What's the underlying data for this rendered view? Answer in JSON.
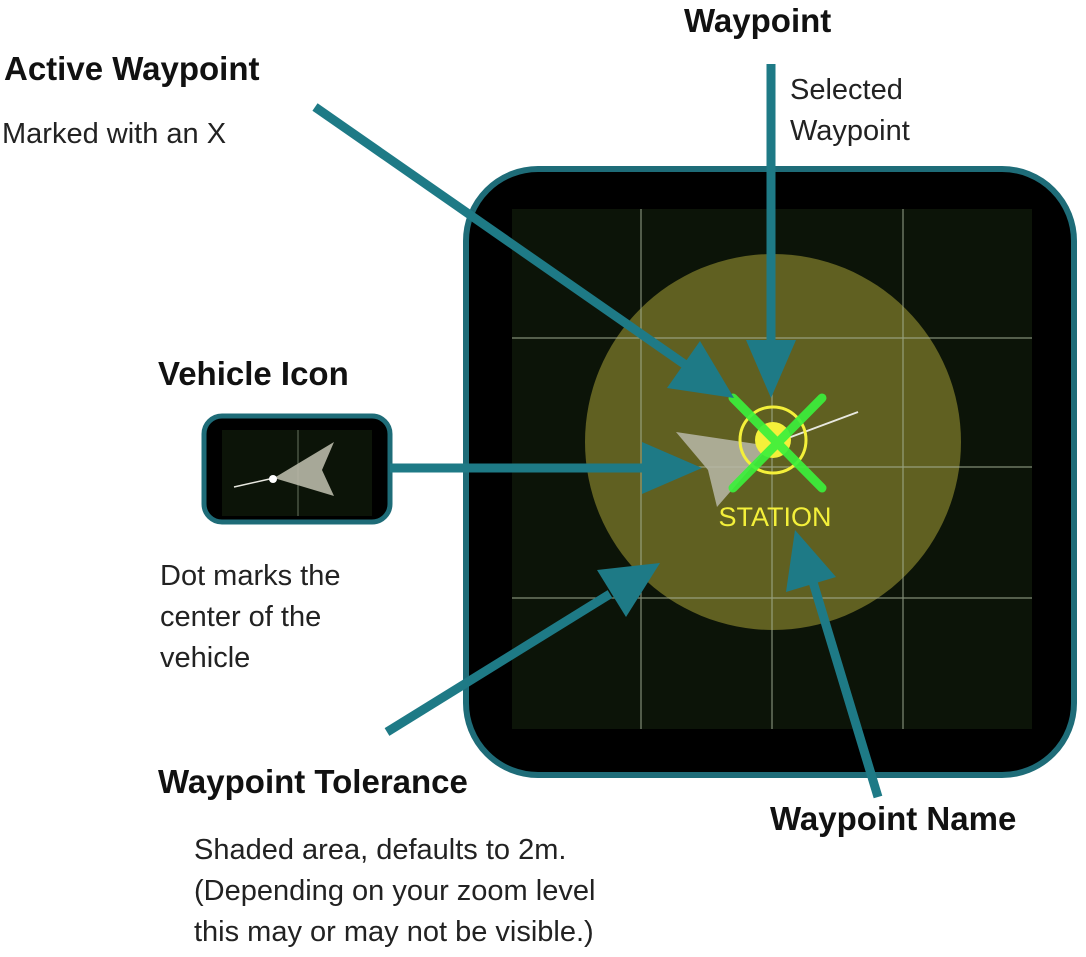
{
  "annotations": {
    "waypoint": {
      "title": "Waypoint",
      "description": [
        "Selected",
        "Waypoint"
      ]
    },
    "active_waypoint": {
      "title": "Active Waypoint",
      "description": [
        "Marked with an X"
      ]
    },
    "vehicle_icon": {
      "title": "Vehicle Icon",
      "description": [
        "Dot marks the",
        "center of the",
        "vehicle"
      ]
    },
    "waypoint_tolerance": {
      "title": "Waypoint Tolerance",
      "description": [
        "Shaded area, defaults to 2m.",
        "(Depending on your zoom level",
        "this may or may not be visible.)"
      ]
    },
    "waypoint_name": {
      "title": "Waypoint Name"
    }
  },
  "map": {
    "waypoint_label": "STATION"
  },
  "colors": {
    "arrow": "#1e7a86",
    "frame_border": "#1e6c78",
    "map_background": "#0c1408",
    "grid_line": "#a8b49a",
    "tolerance_fill": "#7c7a2a",
    "waypoint_yellow": "#f4f03a",
    "active_x": "#3cf03c",
    "vehicle_fill": "#b8b8a8"
  }
}
